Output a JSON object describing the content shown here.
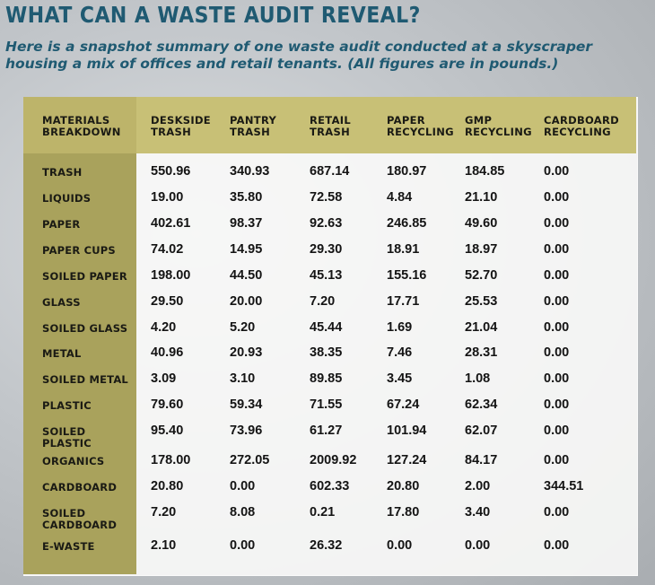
{
  "title": "WHAT CAN A WASTE AUDIT REVEAL?",
  "subtitle": "Here is a snapshot summary of one waste audit conducted at a skyscraper housing a mix of offices and retail tenants. (All figures are in pounds.)",
  "chart_data": {
    "type": "table",
    "corner_header": "MATERIALS BREAKDOWN",
    "columns": [
      "DESKSIDE TRASH",
      "PANTRY TRASH",
      "RETAIL TRASH",
      "PAPER RECYCLING",
      "GMP RECYCLING",
      "CARDBOARD RECYCLING"
    ],
    "rows": [
      {
        "label": "TRASH",
        "values": [
          "550.96",
          "340.93",
          "687.14",
          "180.97",
          "184.85",
          "0.00"
        ]
      },
      {
        "label": "LIQUIDS",
        "values": [
          "19.00",
          "35.80",
          "72.58",
          "4.84",
          "21.10",
          "0.00"
        ]
      },
      {
        "label": "PAPER",
        "values": [
          "402.61",
          "98.37",
          "92.63",
          "246.85",
          "49.60",
          "0.00"
        ]
      },
      {
        "label": "PAPER CUPS",
        "values": [
          "74.02",
          "14.95",
          "29.30",
          "18.91",
          "18.97",
          "0.00"
        ]
      },
      {
        "label": "SOILED PAPER",
        "values": [
          "198.00",
          "44.50",
          "45.13",
          "155.16",
          "52.70",
          "0.00"
        ]
      },
      {
        "label": "GLASS",
        "values": [
          "29.50",
          "20.00",
          "7.20",
          "17.71",
          "25.53",
          "0.00"
        ]
      },
      {
        "label": "SOILED GLASS",
        "values": [
          "4.20",
          "5.20",
          "45.44",
          "1.69",
          "21.04",
          "0.00"
        ]
      },
      {
        "label": "METAL",
        "values": [
          "40.96",
          "20.93",
          "38.35",
          "7.46",
          "28.31",
          "0.00"
        ]
      },
      {
        "label": "SOILED METAL",
        "values": [
          "3.09",
          "3.10",
          "89.85",
          "3.45",
          "1.08",
          "0.00"
        ]
      },
      {
        "label": "PLASTIC",
        "values": [
          "79.60",
          "59.34",
          "71.55",
          "67.24",
          "62.34",
          "0.00"
        ]
      },
      {
        "label": "SOILED PLASTIC",
        "values": [
          "95.40",
          "73.96",
          "61.27",
          "101.94",
          "62.07",
          "0.00"
        ]
      },
      {
        "label": "ORGANICS",
        "values": [
          "178.00",
          "272.05",
          "2009.92",
          "127.24",
          "84.17",
          "0.00"
        ]
      },
      {
        "label": "CARDBOARD",
        "values": [
          "20.80",
          "0.00",
          "602.33",
          "20.80",
          "2.00",
          "344.51"
        ]
      },
      {
        "label": "SOILED CARDBOARD",
        "values": [
          "7.20",
          "8.08",
          "0.21",
          "17.80",
          "3.40",
          "0.00"
        ]
      },
      {
        "label": "E-WASTE",
        "values": [
          "2.10",
          "0.00",
          "26.32",
          "0.00",
          "0.00",
          "0.00"
        ]
      }
    ]
  }
}
